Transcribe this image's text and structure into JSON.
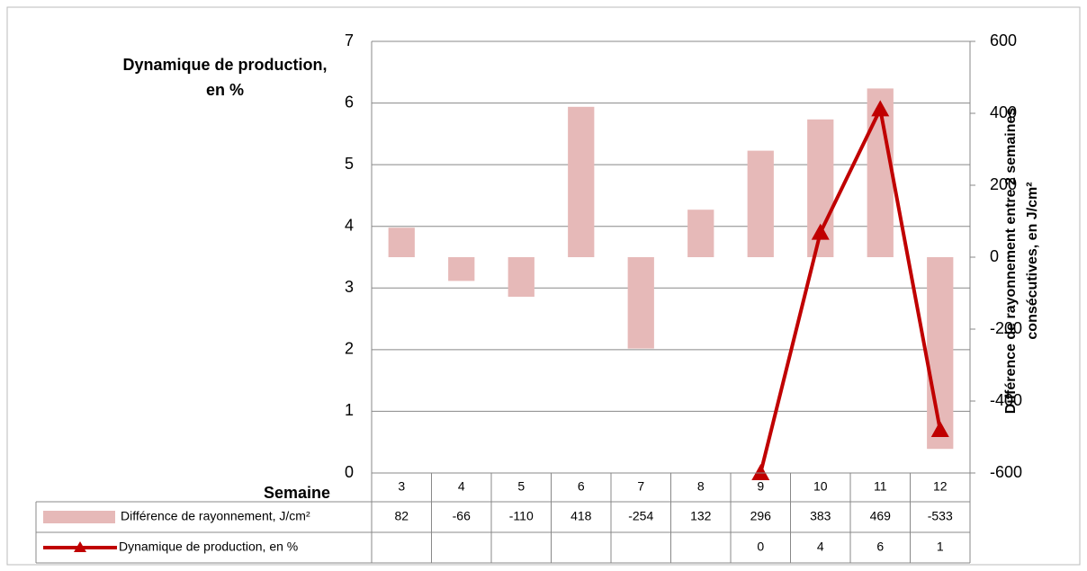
{
  "chart_data": {
    "type": "bar_line",
    "y_axis_label": "Dynamique de production, en %",
    "y2_axis_label": "Différence de rayonnement entre 2 semaines consécutives, en J/cm²",
    "x_axis_label": "Semaine",
    "categories": [
      "3",
      "4",
      "5",
      "6",
      "7",
      "8",
      "9",
      "10",
      "11",
      "12"
    ],
    "series": [
      {
        "name": "Différence de rayonnement, J/cm²",
        "type": "bar",
        "axis": "y2",
        "color": "#e6b9b8",
        "values": [
          82,
          -66,
          -110,
          418,
          -254,
          132,
          296,
          383,
          469,
          -533
        ]
      },
      {
        "name": "Dynamique de production, en %",
        "type": "line",
        "color": "#c00000",
        "values": [
          null,
          null,
          null,
          null,
          null,
          null,
          0,
          3.9,
          5.9,
          0.7
        ],
        "value_labels": [
          null,
          null,
          null,
          null,
          null,
          null,
          "0",
          "4",
          "6",
          "1"
        ]
      }
    ],
    "ylim": [
      0,
      7
    ],
    "yticks": [
      0,
      1,
      2,
      3,
      4,
      5,
      6,
      7
    ],
    "y2lim": [
      -600,
      600
    ],
    "y2ticks": [
      -600,
      -400,
      -200,
      0,
      200,
      400,
      600
    ],
    "grid": true,
    "data_table": true
  }
}
